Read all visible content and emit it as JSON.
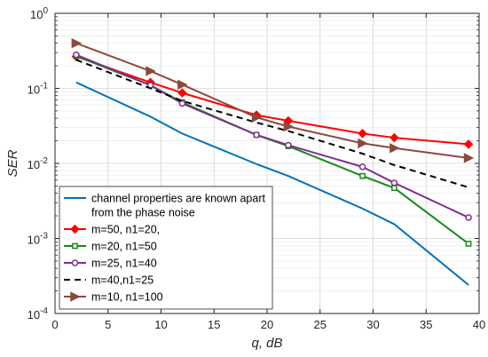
{
  "chart_data": {
    "type": "line",
    "xlabel": "q, dB",
    "ylabel": "SER",
    "xlim": [
      0,
      40
    ],
    "ylim": [
      0.0001,
      1
    ],
    "yscale": "log",
    "grid": true,
    "legend_position": "bottom-left",
    "x_ticks": [
      0,
      5,
      10,
      15,
      20,
      25,
      30,
      35,
      40
    ],
    "x_tick_labels": [
      "0",
      "5",
      "10",
      "15",
      "20",
      "25",
      "30",
      "35",
      "40"
    ],
    "y_ticks": [
      0.0001,
      0.001,
      0.01,
      0.1,
      1
    ],
    "y_tick_labels": [
      {
        "base": "10",
        "exp": "-4"
      },
      {
        "base": "10",
        "exp": "-3"
      },
      {
        "base": "10",
        "exp": "-2"
      },
      {
        "base": "10",
        "exp": "-1"
      },
      {
        "base": "10",
        "exp": "0"
      }
    ],
    "series": [
      {
        "name": "channel properties are known apart from the phase noise",
        "legend_lines": [
          "channel properties are known apart",
          "from the phase noise"
        ],
        "color": "#0072BD",
        "dash": "solid",
        "marker": "none",
        "x": [
          2,
          9,
          12,
          19,
          22,
          29,
          32,
          39
        ],
        "y": [
          0.12,
          0.042,
          0.025,
          0.0098,
          0.0068,
          0.0025,
          0.00155,
          0.00024
        ]
      },
      {
        "name": "m=50, n1=20,",
        "color": "#FF0000",
        "dash": "solid",
        "marker": "diamond",
        "x": [
          2,
          9,
          12,
          19,
          22,
          29,
          32,
          39
        ],
        "y": [
          0.265,
          0.12,
          0.087,
          0.044,
          0.037,
          0.025,
          0.022,
          0.018
        ]
      },
      {
        "name": "m=20, n1=50",
        "color": "#168A16",
        "dash": "solid",
        "marker": "square",
        "x": [
          2,
          9,
          12,
          19,
          22,
          29,
          32,
          39
        ],
        "y": [
          0.27,
          0.11,
          0.065,
          0.024,
          0.017,
          0.0068,
          0.0047,
          0.00085
        ]
      },
      {
        "name": "m=25, n1=40",
        "color": "#7E2F8E",
        "dash": "solid",
        "marker": "circle",
        "x": [
          2,
          9,
          12,
          19,
          22,
          29,
          32,
          39
        ],
        "y": [
          0.28,
          0.11,
          0.063,
          0.024,
          0.0175,
          0.009,
          0.0055,
          0.0019
        ]
      },
      {
        "name": "m=40,n1=25",
        "color": "#000000",
        "dash": "dashed",
        "marker": "none",
        "x": [
          2,
          9,
          12,
          19,
          22,
          29,
          32,
          39
        ],
        "y": [
          0.24,
          0.1,
          0.068,
          0.035,
          0.027,
          0.0135,
          0.0095,
          0.0048
        ]
      },
      {
        "name": "m=10, n1=100",
        "color": "#8B4A3C",
        "dash": "solid",
        "marker": "triangle-right",
        "x": [
          2,
          9,
          12,
          19,
          22,
          29,
          32,
          39
        ],
        "y": [
          0.4,
          0.17,
          0.112,
          0.041,
          0.031,
          0.0185,
          0.016,
          0.0118
        ]
      }
    ]
  }
}
